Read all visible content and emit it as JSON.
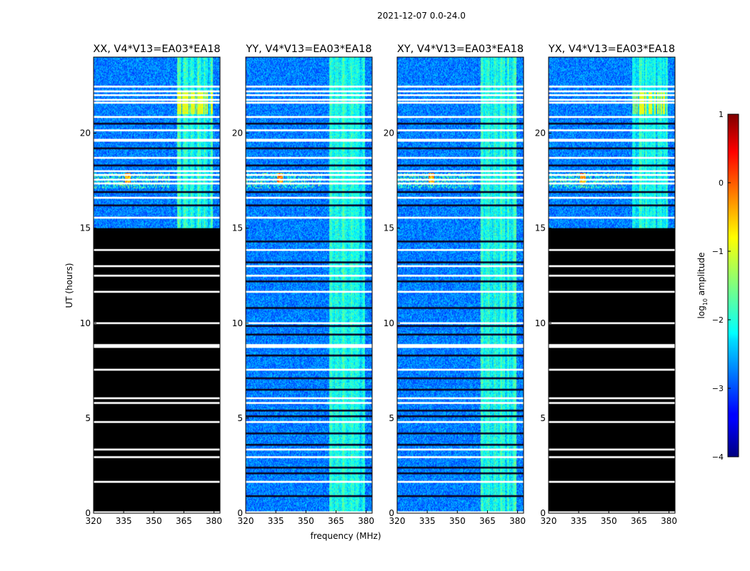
{
  "chart_data": {
    "type": "heatmap",
    "suptitle": "2021-12-07 0.0-24.0",
    "xlabel": "frequency (MHz)",
    "ylabel": "UT (hours)",
    "xlim": [
      320,
      383
    ],
    "ylim": [
      0,
      24
    ],
    "xticks": [
      320,
      335,
      350,
      365,
      380
    ],
    "yticks": [
      0,
      5,
      10,
      15,
      20
    ],
    "colormap": "jet",
    "colorbar": {
      "label_main": "log",
      "label_sub": "10",
      "label_rest": " amplitude",
      "range": [
        -4,
        1
      ],
      "ticks": [
        -4,
        -3,
        -2,
        -1,
        0,
        1
      ],
      "tick_labels": [
        "−4",
        "−3",
        "−2",
        "−1",
        "0",
        "1"
      ]
    },
    "panels": [
      {
        "title": "XX, V4*V13=EA03*EA18",
        "blank_below_hours": 15
      },
      {
        "title": "YY, V4*V13=EA03*EA18",
        "blank_below_hours": 0
      },
      {
        "title": "XY, V4*V13=EA03*EA18",
        "blank_below_hours": 0
      },
      {
        "title": "YX, V4*V13=EA03*EA18",
        "blank_below_hours": 15
      }
    ],
    "rfi_band_mhz": [
      361.5,
      379.5
    ],
    "strong_rfi_hours": [
      21.0,
      22.2
    ],
    "rfi_burst_hours": [
      17.1,
      17.9
    ],
    "flagged_white_hours": [
      0.05,
      1.65,
      2.95,
      3.35,
      4.8,
      5.8,
      6.05,
      7.55,
      8.75,
      8.8,
      8.85,
      10.0,
      11.65,
      12.5,
      13.0,
      13.85,
      15.55,
      16.6,
      17.35,
      17.55,
      17.8,
      18.0,
      18.7,
      19.6,
      19.65,
      20.15,
      20.85,
      21.6,
      21.75,
      22.0,
      22.2,
      22.45
    ],
    "flagged_black_hours": [
      0.9,
      2.1,
      2.4,
      3.6,
      4.2,
      5.1,
      5.4,
      6.5,
      7.1,
      8.3,
      9.4,
      9.85,
      10.8,
      12.2,
      13.2,
      14.3,
      16.2,
      16.9,
      18.3,
      19.2,
      20.5
    ]
  }
}
